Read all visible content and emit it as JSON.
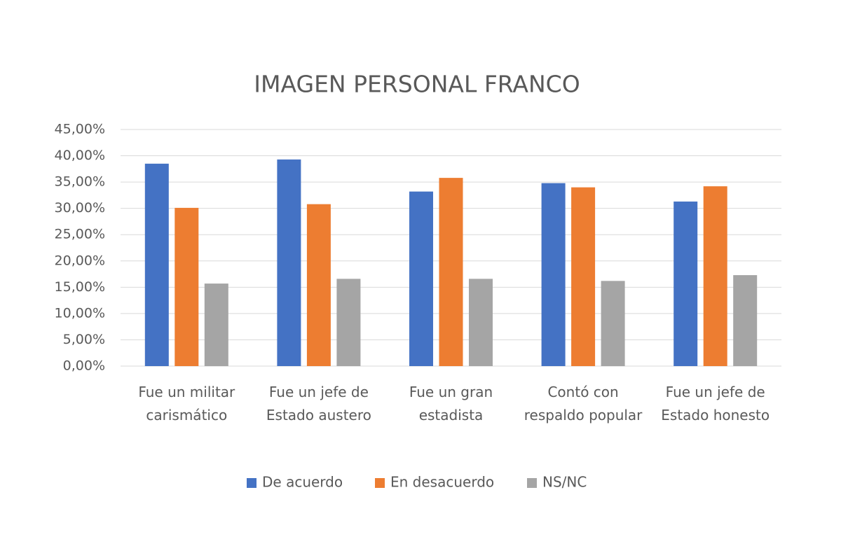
{
  "chart_data": {
    "type": "bar",
    "title": "IMAGEN PERSONAL FRANCO",
    "categories": [
      "Fue un militar carismático",
      "Fue un jefe de Estado austero",
      "Fue un gran estadista",
      "Contó con respaldo popular",
      "Fue un jefe de Estado honesto"
    ],
    "series": [
      {
        "name": "De acuerdo",
        "color": "#4472c4",
        "values": [
          38.5,
          39.3,
          33.2,
          34.8,
          31.3
        ]
      },
      {
        "name": "En desacuerdo",
        "color": "#ed7d31",
        "values": [
          30.1,
          30.8,
          35.8,
          34.0,
          34.2
        ]
      },
      {
        "name": "NS/NC",
        "color": "#a5a5a5",
        "values": [
          15.7,
          16.6,
          16.6,
          16.2,
          17.3
        ]
      }
    ],
    "ylim": [
      0,
      45
    ],
    "yticks": [
      {
        "value": 0,
        "label": "0,00%"
      },
      {
        "value": 5,
        "label": "5,00%"
      },
      {
        "value": 10,
        "label": "10,00%"
      },
      {
        "value": 15,
        "label": "15,00%"
      },
      {
        "value": 20,
        "label": "20,00%"
      },
      {
        "value": 25,
        "label": "25,00%"
      },
      {
        "value": 30,
        "label": "30,00%"
      },
      {
        "value": 35,
        "label": "35,00%"
      },
      {
        "value": 40,
        "label": "40,00%"
      },
      {
        "value": 45,
        "label": "45,00%"
      }
    ],
    "grid": true,
    "legend": "bottom"
  }
}
